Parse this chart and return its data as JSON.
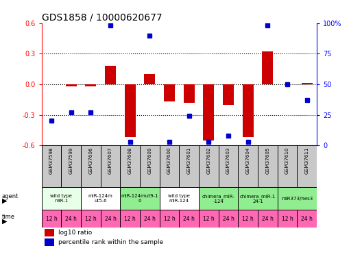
{
  "title": "GDS1858 / 10000620677",
  "samples": [
    "GSM37598",
    "GSM37599",
    "GSM37606",
    "GSM37607",
    "GSM37608",
    "GSM37609",
    "GSM37600",
    "GSM37601",
    "GSM37602",
    "GSM37603",
    "GSM37604",
    "GSM37605",
    "GSM37610",
    "GSM37611"
  ],
  "log10_ratio": [
    0.0,
    -0.02,
    -0.02,
    0.18,
    -0.52,
    0.1,
    -0.17,
    -0.18,
    -0.55,
    -0.2,
    -0.52,
    0.32,
    0.0,
    0.01
  ],
  "percentile": [
    20,
    27,
    27,
    98,
    3,
    90,
    3,
    24,
    3,
    8,
    3,
    98,
    50,
    37
  ],
  "agent_groups": [
    {
      "label": "wild type\nmiR-1",
      "cols": [
        0,
        1
      ],
      "color": "#e8ffe8"
    },
    {
      "label": "miR-124m\nut5-6",
      "cols": [
        2,
        3
      ],
      "color": "#ffffff"
    },
    {
      "label": "miR-124mut9-1\n0",
      "cols": [
        4,
        5
      ],
      "color": "#90ee90"
    },
    {
      "label": "wild type\nmiR-124",
      "cols": [
        6,
        7
      ],
      "color": "#ffffff"
    },
    {
      "label": "chimera_miR-\n-124",
      "cols": [
        8,
        9
      ],
      "color": "#90ee90"
    },
    {
      "label": "chimera_miR-1\n24-1",
      "cols": [
        10,
        11
      ],
      "color": "#90ee90"
    },
    {
      "label": "miR373/hes3",
      "cols": [
        12,
        13
      ],
      "color": "#90ee90"
    }
  ],
  "time_labels": [
    "12 h",
    "24 h",
    "12 h",
    "24 h",
    "12 h",
    "24 h",
    "12 h",
    "24 h",
    "12 h",
    "24 h",
    "12 h",
    "24 h",
    "12 h",
    "24 h"
  ],
  "time_color": "#ff69b4",
  "ylim_left": [
    -0.6,
    0.6
  ],
  "ylim_right": [
    0,
    100
  ],
  "yticks_left": [
    -0.6,
    -0.3,
    0.0,
    0.3,
    0.6
  ],
  "yticks_right": [
    0,
    25,
    50,
    75,
    100
  ],
  "bar_color": "#cc0000",
  "dot_color": "#0000cc",
  "grid_lines": [
    -0.3,
    0.0,
    0.3
  ],
  "bg_color": "#ffffff",
  "sample_bg": "#c8c8c8"
}
